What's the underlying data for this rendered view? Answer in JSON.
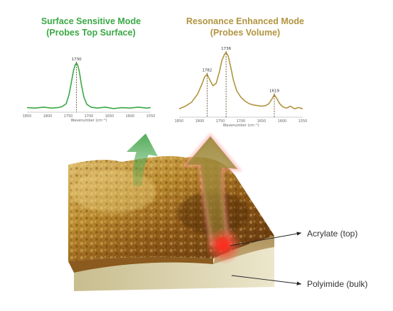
{
  "left_panel": {
    "title_line1": "Surface Sensitive Mode",
    "title_line2": "(Probes Top Surface)",
    "color": "#3aa845",
    "chart_data": {
      "type": "line",
      "xlabel": "Wavenumber (cm⁻¹)",
      "xlim": [
        1850,
        1550
      ],
      "xticks": [
        "1850",
        "1800",
        "1750",
        "1700",
        "1650",
        "1600",
        "1550"
      ],
      "peak_labels": [
        "1730"
      ],
      "series": [
        {
          "x": [
            1850,
            1830,
            1810,
            1790,
            1775,
            1765,
            1755,
            1748,
            1742,
            1737,
            1733,
            1730,
            1727,
            1723,
            1718,
            1712,
            1705,
            1695,
            1680,
            1660,
            1640,
            1620,
            1600,
            1580,
            1560,
            1550
          ],
          "y": [
            0.08,
            0.07,
            0.09,
            0.07,
            0.08,
            0.1,
            0.16,
            0.35,
            0.62,
            0.85,
            0.97,
            1.0,
            0.96,
            0.82,
            0.55,
            0.3,
            0.15,
            0.09,
            0.07,
            0.09,
            0.06,
            0.08,
            0.07,
            0.09,
            0.07,
            0.08
          ]
        }
      ]
    }
  },
  "right_panel": {
    "title_line1": "Resonance Enhanced Mode",
    "title_line2": "(Probes Volume)",
    "color": "#b29440",
    "chart_data": {
      "type": "line",
      "xlabel": "Wavenumber (cm⁻¹)",
      "xlim": [
        1850,
        1550
      ],
      "xticks": [
        "1850",
        "1800",
        "1750",
        "1700",
        "1650",
        "1600",
        "1550"
      ],
      "peak_labels": [
        "1782",
        "1736",
        "1619"
      ],
      "series": [
        {
          "x": [
            1850,
            1835,
            1820,
            1805,
            1795,
            1788,
            1782,
            1776,
            1768,
            1760,
            1752,
            1746,
            1740,
            1736,
            1731,
            1725,
            1718,
            1710,
            1700,
            1690,
            1680,
            1670,
            1660,
            1650,
            1640,
            1632,
            1625,
            1619,
            1613,
            1606,
            1598,
            1590,
            1580,
            1570,
            1560,
            1550
          ],
          "y": [
            0.12,
            0.16,
            0.22,
            0.35,
            0.5,
            0.62,
            0.66,
            0.58,
            0.48,
            0.52,
            0.7,
            0.88,
            0.97,
            1.0,
            0.95,
            0.78,
            0.56,
            0.4,
            0.3,
            0.24,
            0.2,
            0.18,
            0.17,
            0.16,
            0.17,
            0.2,
            0.27,
            0.34,
            0.28,
            0.2,
            0.15,
            0.13,
            0.16,
            0.12,
            0.14,
            0.12
          ]
        }
      ]
    }
  },
  "labels": {
    "acrylate": "Acrylate (top)",
    "polyimide": "Polyimide (bulk)"
  },
  "colors": {
    "green_arrow": "#4aa851",
    "gold_arrow": "#9e8a3c",
    "probe_glow": "#ff3b2f",
    "surface_light": "#d9b45a",
    "surface_dark": "#6b3e10",
    "bulk_layer": "#d8cfa6"
  }
}
